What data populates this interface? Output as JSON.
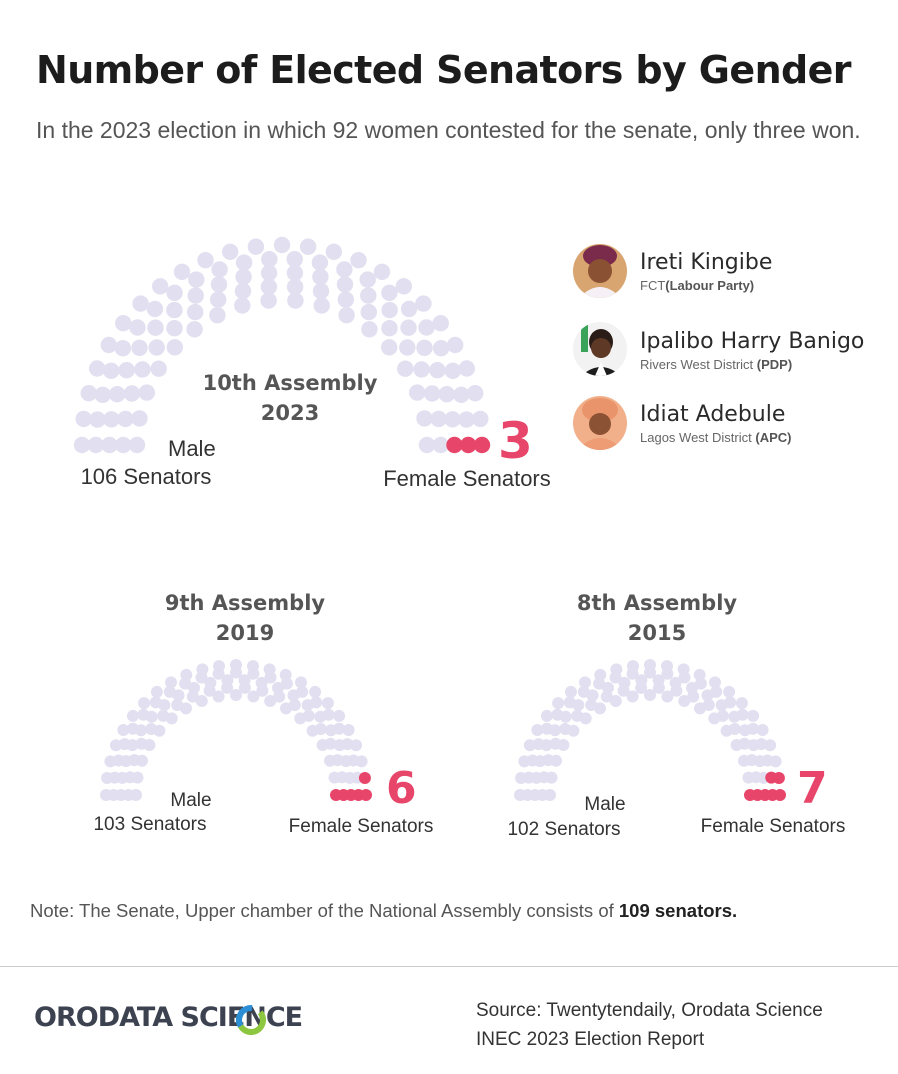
{
  "title": "Number of Elected Senators by Gender",
  "subtitle": "In the 2023 election in which 92 women contested for the senate, only three won.",
  "colors": {
    "male": "#e2dff0",
    "female": "#e8456a",
    "accent_green": "#8dc63f",
    "accent_blue": "#2c8fd6"
  },
  "chart_data": [
    {
      "type": "parliament",
      "title_line1": "10th Assembly",
      "title_line2": "2023",
      "total_seats": 109,
      "male_seats": 106,
      "female_seats": 3,
      "male_label": "Male",
      "male_count_label": "106 Senators",
      "female_number": "3",
      "female_label": "Female Senators"
    },
    {
      "type": "parliament",
      "title_line1": "9th Assembly",
      "title_line2": "2019",
      "total_seats": 109,
      "male_seats": 103,
      "female_seats": 6,
      "male_label": "Male",
      "male_count_label": "103 Senators",
      "female_number": "6",
      "female_label": "Female Senators"
    },
    {
      "type": "parliament",
      "title_line1": "8th Assembly",
      "title_line2": "2015",
      "total_seats": 109,
      "male_seats": 102,
      "female_seats": 7,
      "male_label": "Male",
      "male_count_label": "102 Senators",
      "female_number": "7",
      "female_label": "Female Senators"
    }
  ],
  "senators": [
    {
      "name": "Ireti Kingibe",
      "district": "FCT",
      "party": "(Labour Party)",
      "avatar_icon": "woman-portrait-icon"
    },
    {
      "name": "Ipalibo Harry Banigo",
      "district": "Rivers West District ",
      "party": "(PDP)",
      "avatar_icon": "woman-portrait-icon"
    },
    {
      "name": "Idiat Adebule",
      "district": "Lagos West District ",
      "party": "(APC)",
      "avatar_icon": "woman-portrait-icon"
    }
  ],
  "note": {
    "text": "Note: The Senate, Upper chamber of the National Assembly consists of ",
    "bold": "109 senators."
  },
  "footer": {
    "logo": "ORODATA SCIENCE",
    "source_line1": "Source: Twentytendaily, Orodata Science",
    "source_line2": "INEC 2023 Election Report"
  }
}
